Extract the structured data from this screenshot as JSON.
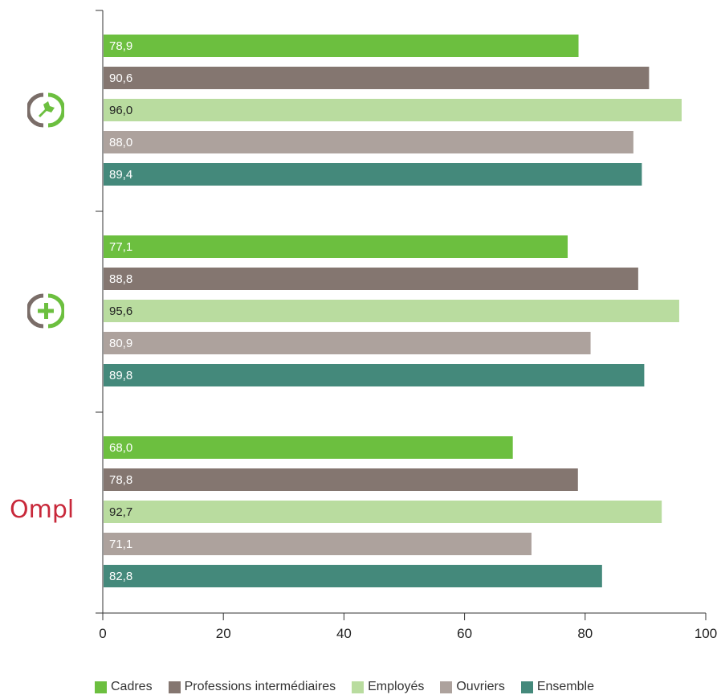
{
  "chart_data": {
    "type": "bar",
    "orientation": "horizontal",
    "groups": [
      {
        "icon": "wrench-circle-icon",
        "values": [
          78.9,
          90.6,
          96.0,
          88.0,
          89.4
        ],
        "labels": [
          "78,9",
          "90,6",
          "96,0",
          "88,0",
          "89,4"
        ]
      },
      {
        "icon": "plus-circle-icon",
        "values": [
          77.1,
          88.8,
          95.6,
          80.9,
          89.8
        ],
        "labels": [
          "77,1",
          "88,8",
          "95,6",
          "80,9",
          "89,8"
        ]
      },
      {
        "icon": "ompl-logo",
        "logo_text": "Ompl",
        "values": [
          68.0,
          78.8,
          92.7,
          71.1,
          82.8
        ],
        "labels": [
          "68,0",
          "78,8",
          "92,7",
          "71,1",
          "82,8"
        ]
      }
    ],
    "series": [
      {
        "name": "Cadres",
        "color": "#6cbf3f",
        "label_color": "#ffffff"
      },
      {
        "name": "Professions intermédiaires",
        "color": "#847670",
        "label_color": "#ffffff"
      },
      {
        "name": "Employés",
        "color": "#b9dc9f",
        "label_color": "#222222"
      },
      {
        "name": "Ouvriers",
        "color": "#ada29d",
        "label_color": "#ffffff"
      },
      {
        "name": "Ensemble",
        "color": "#44897b",
        "label_color": "#ffffff"
      }
    ],
    "xlim": [
      0,
      100
    ],
    "xticks": [
      0,
      20,
      40,
      60,
      80,
      100
    ],
    "xtick_labels": [
      "0",
      "20",
      "40",
      "60",
      "80",
      "100"
    ],
    "grid": false,
    "legend_position": "bottom"
  }
}
